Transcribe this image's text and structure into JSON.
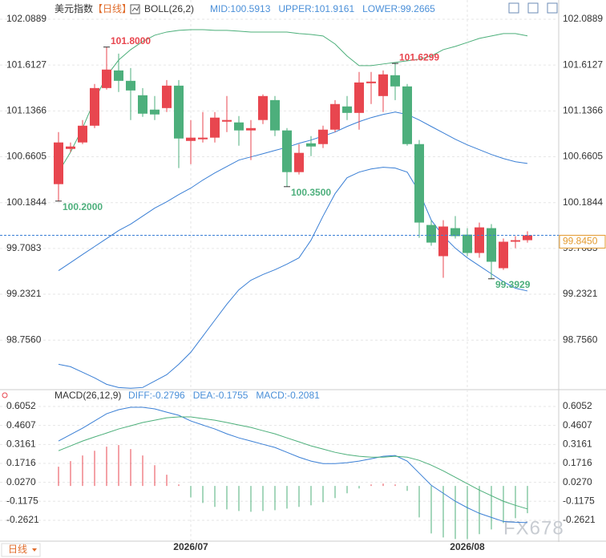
{
  "chart_data": [
    {
      "type": "candlestick",
      "title": "美元指数",
      "subtitle": "【日线】",
      "indicator": "BOLL(26,2)",
      "up_color": "#e8464f",
      "down_color": "#4daf7c",
      "open": [
        100.376,
        100.742,
        100.809,
        100.983,
        101.374,
        101.557,
        101.449,
        101.299,
        101.15,
        101.166,
        101.399,
        100.825,
        100.842,
        100.859,
        101.025,
        101.017,
        100.934,
        101.042,
        101.249,
        100.934,
        100.501,
        100.8,
        100.792,
        100.942,
        101.183,
        101.116,
        101.424,
        101.291,
        101.507,
        101.391,
        100.792,
        99.952,
        99.628,
        99.919,
        99.852,
        99.661,
        99.919,
        99.503,
        99.778,
        99.794
      ],
      "high": [
        100.917,
        100.809,
        101.042,
        101.416,
        101.8,
        101.732,
        101.582,
        101.374,
        101.291,
        101.457,
        101.457,
        101.042,
        101.125,
        101.125,
        101.291,
        101.083,
        101.042,
        101.308,
        101.291,
        100.958,
        100.792,
        100.875,
        100.983,
        101.249,
        101.291,
        101.541,
        101.541,
        101.557,
        101.6299,
        101.416,
        100.834,
        100.002,
        100.002,
        100.044,
        99.919,
        99.977,
        99.961,
        99.811,
        99.836,
        99.886
      ],
      "low": [
        100.2,
        100.709,
        100.792,
        100.958,
        101.358,
        101.333,
        101.042,
        101.075,
        101.042,
        101.125,
        100.543,
        100.584,
        100.809,
        100.809,
        100.917,
        100.775,
        100.626,
        101.0,
        100.875,
        100.35,
        100.476,
        100.667,
        100.751,
        100.917,
        101.042,
        100.942,
        101.208,
        101.125,
        101.249,
        100.775,
        99.819,
        99.736,
        99.403,
        99.811,
        99.628,
        99.611,
        99.3929,
        99.486,
        99.711,
        99.769
      ],
      "close": [
        100.809,
        100.767,
        100.983,
        101.374,
        101.566,
        101.449,
        101.349,
        101.108,
        101.1,
        101.399,
        100.85,
        100.859,
        100.859,
        101.067,
        101.042,
        100.934,
        100.958,
        101.291,
        100.934,
        100.501,
        100.701,
        100.767,
        100.942,
        101.208,
        101.116,
        101.432,
        101.441,
        101.516,
        101.391,
        100.792,
        99.977,
        99.769,
        99.936,
        99.836,
        99.661,
        99.927,
        99.57,
        99.778,
        99.794,
        99.845
      ],
      "series": [
        {
          "name": "MID:100.5913",
          "color": "#3a7fd5",
          "values": [
            99.478,
            99.561,
            99.645,
            99.728,
            99.811,
            99.894,
            99.961,
            100.044,
            100.127,
            100.193,
            100.268,
            100.335,
            100.418,
            100.493,
            100.559,
            100.626,
            100.659,
            100.692,
            100.726,
            100.759,
            100.8,
            100.834,
            100.875,
            100.917,
            100.975,
            101.025,
            101.067,
            101.1,
            101.125,
            101.1,
            101.042,
            100.975,
            100.909,
            100.842,
            100.784,
            100.734,
            100.684,
            100.642,
            100.609,
            100.5913
          ]
        },
        {
          "name": "UPPER:101.9161",
          "color": "#4caf7a",
          "values": [
            100.501,
            100.709,
            100.958,
            101.249,
            101.499,
            101.665,
            101.773,
            101.857,
            101.923,
            101.956,
            101.973,
            101.981,
            101.981,
            101.973,
            101.973,
            101.965,
            101.956,
            101.956,
            101.956,
            101.956,
            101.94,
            101.931,
            101.915,
            101.832,
            101.707,
            101.607,
            101.607,
            101.624,
            101.64,
            101.657,
            101.674,
            101.707,
            101.773,
            101.807,
            101.848,
            101.89,
            101.915,
            101.94,
            101.94,
            101.9161
          ]
        },
        {
          "name": "LOWER:99.2665",
          "color": "#3a7fd5",
          "values": [
            98.505,
            98.48,
            98.422,
            98.364,
            98.297,
            98.264,
            98.256,
            98.264,
            98.331,
            98.397,
            98.505,
            98.63,
            98.796,
            98.963,
            99.129,
            99.279,
            99.378,
            99.437,
            99.487,
            99.545,
            99.611,
            99.794,
            100.044,
            100.277,
            100.443,
            100.501,
            100.534,
            100.551,
            100.543,
            100.501,
            100.293,
            100.002,
            99.836,
            99.711,
            99.611,
            99.528,
            99.445,
            99.362,
            99.295,
            99.2665
          ]
        }
      ],
      "annotations": [
        {
          "value": 101.8,
          "label": "101.8000"
        },
        {
          "value": 101.6299,
          "label": "101.6299"
        },
        {
          "value": 100.2,
          "label": "100.2000"
        },
        {
          "value": 100.35,
          "label": "100.3500"
        },
        {
          "value": 99.3929,
          "label": "99.3929"
        }
      ],
      "last_price": {
        "value": 99.845,
        "label": "99.8450"
      },
      "ylim": [
        98.25,
        102.222
      ],
      "yticks": [
        102.0889,
        101.6127,
        101.1366,
        100.6605,
        100.1844,
        99.7083,
        99.2321,
        {
          "value": 98.756,
          "label": "98.7560"
        }
      ],
      "grid": true
    },
    {
      "type": "macd",
      "title": "MACD(26,12,9)",
      "categories": [
        null,
        null,
        null,
        null,
        null,
        null,
        null,
        null,
        null,
        null,
        null,
        "2026/07",
        null,
        null,
        null,
        null,
        null,
        null,
        null,
        null,
        null,
        null,
        null,
        null,
        null,
        null,
        null,
        null,
        null,
        null,
        null,
        null,
        null,
        null,
        "2026/08",
        null,
        null,
        null,
        null,
        null
      ],
      "series": [
        {
          "name": "DIFF:-0.2796",
          "color": "#3a7fd5",
          "values": [
            0.342,
            0.391,
            0.44,
            0.495,
            0.55,
            0.581,
            0.599,
            0.599,
            0.587,
            0.562,
            0.538,
            0.495,
            0.464,
            0.434,
            0.397,
            0.366,
            0.342,
            0.317,
            0.293,
            0.256,
            0.219,
            0.189,
            0.17,
            0.17,
            0.177,
            0.189,
            0.207,
            0.226,
            0.232,
            0.189,
            0.097,
            0.005,
            -0.056,
            -0.117,
            -0.166,
            -0.209,
            -0.24,
            -0.271,
            -0.277,
            -0.2796
          ]
        },
        {
          "name": "DEA:-0.1755",
          "color": "#4caf7a",
          "values": [
            0.268,
            0.305,
            0.342,
            0.373,
            0.403,
            0.434,
            0.458,
            0.483,
            0.501,
            0.519,
            0.526,
            0.526,
            0.513,
            0.501,
            0.483,
            0.464,
            0.446,
            0.421,
            0.397,
            0.366,
            0.336,
            0.305,
            0.281,
            0.256,
            0.238,
            0.226,
            0.219,
            0.219,
            0.226,
            0.219,
            0.195,
            0.158,
            0.115,
            0.066,
            0.017,
            -0.032,
            -0.075,
            -0.117,
            -0.148,
            -0.1755
          ]
        },
        {
          "name": "MACD:-0.2081",
          "color": "#3a7fd5",
          "up_color": "#e8464f",
          "down_color": "#4caf7a",
          "values": [
            0.146,
            0.189,
            0.232,
            0.268,
            0.299,
            0.311,
            0.281,
            0.232,
            0.158,
            0.085,
            0.011,
            -0.087,
            -0.13,
            -0.16,
            -0.179,
            -0.191,
            -0.197,
            -0.191,
            -0.185,
            -0.173,
            -0.16,
            -0.148,
            -0.124,
            -0.093,
            -0.056,
            -0.019,
            0.011,
            0.017,
            0.011,
            -0.038,
            -0.24,
            -0.362,
            -0.393,
            -0.405,
            -0.405,
            -0.368,
            -0.332,
            -0.283,
            -0.246,
            -0.2081
          ]
        }
      ],
      "ylim": [
        -0.415,
        0.7215
      ],
      "yticks": [
        0.6052,
        0.4607,
        0.3161,
        0.1716,
        {
          "value": 0.027,
          "label": "0.0270"
        },
        -0.1175,
        -0.2621
      ],
      "grid": true
    },
    {
      "type": "footer",
      "period_button": "日线",
      "watermark": "FX678"
    }
  ]
}
